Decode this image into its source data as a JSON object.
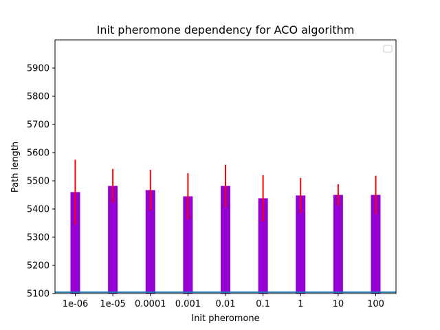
{
  "chart_data": {
    "type": "bar",
    "title": "Init pheromone dependency for ACO algorithm",
    "xlabel": "Init pheromone",
    "ylabel": "Path length",
    "categories": [
      "1e-06",
      "1e-05",
      "0.0001",
      "0.001",
      "0.01",
      "0.1",
      "1",
      "10",
      "100"
    ],
    "series": [
      {
        "values": [
          5460,
          5482,
          5467,
          5445,
          5482,
          5438,
          5448,
          5450,
          5450
        ],
        "error": [
          115,
          60,
          72,
          82,
          75,
          82,
          62,
          38,
          68
        ],
        "color": "#9400d3",
        "error_color": "#ff0000"
      }
    ],
    "reference_line": {
      "value": 5105,
      "color": "#1f77b4"
    },
    "ylim": [
      5100,
      6000
    ],
    "yticks": [
      5100,
      5200,
      5300,
      5400,
      5500,
      5600,
      5700,
      5800,
      5900
    ],
    "grid": false,
    "legend": {
      "placement": "top-right",
      "entries": []
    }
  }
}
